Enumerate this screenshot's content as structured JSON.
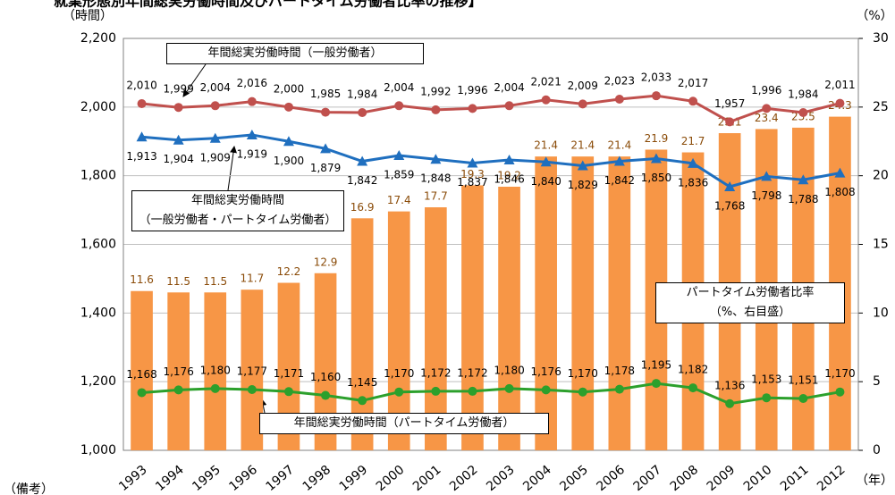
{
  "chart_data": {
    "type": "combo",
    "title": "就業形態別年間総実労働時間及びパートタイム労働者比率の推移】",
    "y_unit": "（時間）",
    "y2_unit": "（%）",
    "x_unit": "（年）",
    "note": "（備考）",
    "categories": [
      "1993",
      "1994",
      "1995",
      "1996",
      "1997",
      "1998",
      "1999",
      "2000",
      "2001",
      "2002",
      "2003",
      "2004",
      "2005",
      "2006",
      "2007",
      "2008",
      "2009",
      "2010",
      "2011",
      "2012"
    ],
    "ylim": [
      1000,
      2200
    ],
    "yticks": [
      {
        "value": 1000,
        "label": "1,000"
      },
      {
        "value": 1200,
        "label": "1,200"
      },
      {
        "value": 1400,
        "label": "1,400"
      },
      {
        "value": 1600,
        "label": "1,600"
      },
      {
        "value": 1800,
        "label": "1,800"
      },
      {
        "value": 2000,
        "label": "2,000"
      },
      {
        "value": 2200,
        "label": "2,200"
      }
    ],
    "y2lim": [
      0,
      30
    ],
    "y2ticks": [
      0,
      5,
      10,
      15,
      20,
      25,
      30
    ],
    "grid": true,
    "series": [
      {
        "name": "パートタイム労働者比率\n（%、右目盛）",
        "type": "bar",
        "axis": "y2",
        "color": "#f79646",
        "values": [
          11.6,
          11.5,
          11.5,
          11.7,
          12.2,
          12.9,
          16.9,
          17.4,
          17.7,
          19.3,
          19.2,
          21.4,
          21.4,
          21.4,
          21.9,
          21.7,
          23.1,
          23.4,
          23.5,
          24.3
        ]
      },
      {
        "name": "年間総実労働時間（一般労働者）",
        "type": "line",
        "color": "#c0504d",
        "marker": "circle",
        "values": [
          2010,
          1999,
          2004,
          2016,
          2000,
          1985,
          1984,
          2004,
          1992,
          1996,
          2004,
          2021,
          2009,
          2023,
          2033,
          2017,
          1957,
          1996,
          1984,
          2011
        ],
        "value_labels": [
          "2,010",
          "1,999",
          "2,004",
          "2,016",
          "2,000",
          "1,985",
          "1,984",
          "2,004",
          "1,992",
          "1,996",
          "2,004",
          "2,021",
          "2,009",
          "2,023",
          "2,033",
          "2,017",
          "1,957",
          "1,996",
          "1,984",
          "2,011"
        ]
      },
      {
        "name": "年間総実労働時間\n（一般労働者・パートタイム労働者）",
        "type": "line",
        "color": "#1f6fbf",
        "marker": "triangle",
        "values": [
          1913,
          1904,
          1909,
          1919,
          1900,
          1879,
          1842,
          1859,
          1848,
          1837,
          1846,
          1840,
          1829,
          1842,
          1850,
          1836,
          1768,
          1798,
          1788,
          1808
        ],
        "value_labels": [
          "1,913",
          "1,904",
          "1,909",
          "1,919",
          "1,900",
          "1,879",
          "1,842",
          "1,859",
          "1,848",
          "1,837",
          "1,846",
          "1,840",
          "1,829",
          "1,842",
          "1,850",
          "1,836",
          "1,768",
          "1,798",
          "1,788",
          "1,808"
        ]
      },
      {
        "name": "年間総実労働時間（パートタイム労働者）",
        "type": "line",
        "color": "#2ca02c",
        "marker": "circle",
        "values": [
          1168,
          1176,
          1180,
          1177,
          1171,
          1160,
          1145,
          1170,
          1172,
          1172,
          1180,
          1176,
          1170,
          1178,
          1195,
          1182,
          1136,
          1153,
          1151,
          1170
        ],
        "value_labels": [
          "1,168",
          "1,176",
          "1,180",
          "1,177",
          "1,171",
          "1,160",
          "1,145",
          "1,170",
          "1,172",
          "1,172",
          "1,180",
          "1,176",
          "1,170",
          "1,178",
          "1,195",
          "1,182",
          "1,136",
          "1,153",
          "1,151",
          "1,170"
        ]
      }
    ]
  }
}
